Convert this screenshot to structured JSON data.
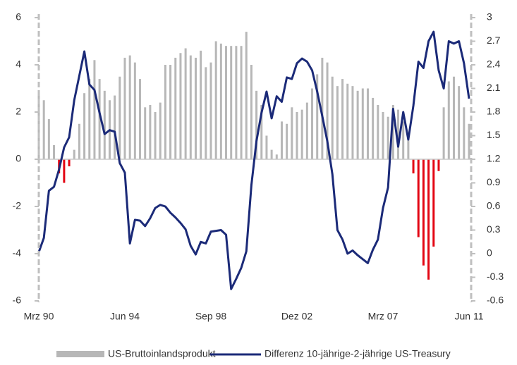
{
  "chart_data": {
    "type": "bar_line",
    "categories": [
      "Mrz 90",
      null,
      null,
      null,
      null,
      null,
      null,
      null,
      null,
      null,
      null,
      null,
      null,
      null,
      null,
      null,
      null,
      "Jun 94",
      null,
      null,
      null,
      null,
      null,
      null,
      null,
      null,
      null,
      null,
      null,
      null,
      null,
      null,
      null,
      null,
      "Sep 98",
      null,
      null,
      null,
      null,
      null,
      null,
      null,
      null,
      null,
      null,
      null,
      null,
      null,
      null,
      null,
      null,
      "Dez 02",
      null,
      null,
      null,
      null,
      null,
      null,
      null,
      null,
      null,
      null,
      null,
      null,
      null,
      null,
      null,
      null,
      "Mrz 07",
      null,
      null,
      null,
      null,
      null,
      null,
      null,
      null,
      null,
      null,
      null,
      null,
      null,
      null,
      null,
      null,
      "Jun 11"
    ],
    "series": [
      {
        "name": "US-Bruttoinlandsprodukt",
        "type": "bar",
        "color": "#b7b7b7",
        "negative_color": "#e30613",
        "values": [
          2.8,
          2.5,
          1.7,
          0.6,
          -0.6,
          -1.0,
          -0.3,
          0.4,
          1.5,
          2.8,
          3.4,
          4.2,
          3.4,
          2.9,
          2.5,
          2.7,
          3.5,
          4.3,
          4.4,
          4.1,
          3.4,
          2.2,
          2.3,
          2.0,
          2.4,
          4.0,
          4.0,
          4.3,
          4.5,
          4.7,
          4.4,
          4.3,
          4.6,
          3.9,
          4.1,
          5.0,
          4.9,
          4.8,
          4.8,
          4.8,
          4.8,
          5.4,
          4.0,
          2.9,
          2.3,
          1.0,
          0.4,
          0.2,
          1.6,
          1.5,
          2.2,
          2.0,
          2.1,
          2.4,
          3.0,
          3.6,
          4.3,
          4.1,
          3.5,
          3.1,
          3.4,
          3.2,
          3.1,
          2.9,
          3.0,
          3.0,
          2.6,
          2.3,
          2.0,
          1.8,
          2.3,
          2.1,
          1.6,
          1.0,
          -0.6,
          -3.3,
          -4.5,
          -5.1,
          -3.7,
          -0.5,
          2.2,
          3.3,
          3.5,
          3.1,
          2.2,
          1.5
        ]
      },
      {
        "name": "Differenz 10-jährige-2-jährige US-Treasury",
        "type": "line",
        "axis": "y2",
        "color": "#1b2a78",
        "values": [
          0.02,
          0.2,
          0.8,
          0.85,
          1.07,
          1.35,
          1.48,
          1.95,
          2.26,
          2.57,
          2.15,
          2.08,
          1.79,
          1.52,
          1.57,
          1.55,
          1.15,
          1.03,
          0.13,
          0.43,
          0.42,
          0.35,
          0.45,
          0.58,
          0.62,
          0.6,
          0.52,
          0.46,
          0.39,
          0.31,
          0.1,
          -0.01,
          0.15,
          0.13,
          0.28,
          0.29,
          0.3,
          0.24,
          -0.45,
          -0.32,
          -0.18,
          0.03,
          0.87,
          1.43,
          1.79,
          2.06,
          1.72,
          2.0,
          1.93,
          2.24,
          2.22,
          2.42,
          2.48,
          2.44,
          2.33,
          2.06,
          1.75,
          1.43,
          1.01,
          0.3,
          0.18,
          0.0,
          0.04,
          -0.02,
          -0.07,
          -0.12,
          0.05,
          0.18,
          0.58,
          0.84,
          1.84,
          1.36,
          1.8,
          1.45,
          1.88,
          2.44,
          2.36,
          2.7,
          2.82,
          2.33,
          2.1,
          2.7,
          2.67,
          2.7,
          2.42,
          1.97
        ]
      }
    ],
    "ylim": [
      -6,
      6
    ],
    "yticks": [
      6,
      4,
      2,
      0,
      -2,
      -4,
      -6
    ],
    "y2lim": [
      -0.6,
      3
    ],
    "y2ticks": [
      3,
      2.7,
      2.4,
      2.1,
      1.8,
      1.5,
      1.2,
      0.9,
      0.6,
      0.3,
      0,
      -0.3,
      -0.6
    ],
    "legend": "bottom"
  }
}
